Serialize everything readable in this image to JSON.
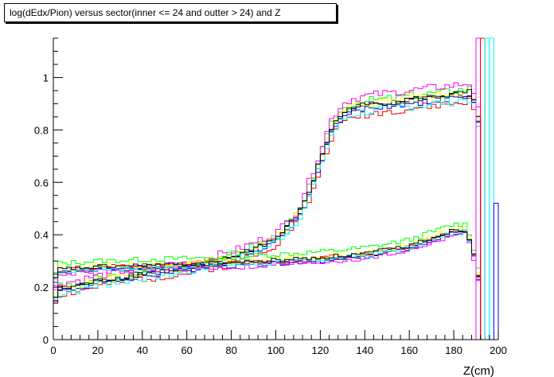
{
  "chart_data": {
    "type": "line",
    "title": "log(dEdx/Pion) versus sector(inner <= 24 and outter > 24)  and Z",
    "xlabel": "Z(cm)",
    "ylabel": "",
    "xlim": [
      0,
      200
    ],
    "ylim": [
      0,
      1.15
    ],
    "x_ticks": [
      0,
      20,
      40,
      60,
      80,
      100,
      120,
      140,
      160,
      180,
      200
    ],
    "y_ticks": [
      0,
      0.2,
      0.4,
      0.6,
      0.8,
      1
    ],
    "x_tick_labels": [
      "0",
      "20",
      "40",
      "60",
      "80",
      "100",
      "120",
      "140",
      "160",
      "180",
      "200"
    ],
    "y_tick_labels": [
      "0",
      "0.2",
      "0.4",
      "0.6",
      "0.8",
      "1"
    ],
    "grid": false,
    "legend": "none",
    "bin_width": 2,
    "band_templates": {
      "rising": {
        "x": [
          0,
          2,
          10,
          20,
          40,
          60,
          80,
          100,
          110,
          115,
          120,
          125,
          130,
          135,
          140,
          150,
          160,
          170,
          180,
          188,
          192
        ],
        "y": [
          0.13,
          0.19,
          0.2,
          0.22,
          0.25,
          0.27,
          0.31,
          0.38,
          0.47,
          0.56,
          0.68,
          0.8,
          0.86,
          0.88,
          0.89,
          0.9,
          0.91,
          0.92,
          0.93,
          0.94,
          0.8
        ]
      },
      "flat": {
        "x": [
          0,
          2,
          20,
          40,
          60,
          80,
          100,
          120,
          140,
          160,
          170,
          180,
          185,
          188,
          192
        ],
        "y": [
          0.19,
          0.26,
          0.27,
          0.275,
          0.28,
          0.285,
          0.295,
          0.305,
          0.32,
          0.35,
          0.38,
          0.41,
          0.41,
          0.36,
          0.2
        ]
      }
    },
    "series": [
      {
        "color": "#000000",
        "band": "rising",
        "shift": 0.0,
        "noise": 0.012,
        "seed": 1
      },
      {
        "color": "#ff0000",
        "band": "rising",
        "shift": -0.03,
        "noise": 0.015,
        "seed": 2
      },
      {
        "color": "#00ff00",
        "band": "rising",
        "shift": 0.02,
        "noise": 0.015,
        "seed": 3
      },
      {
        "color": "#0000ff",
        "band": "rising",
        "shift": -0.01,
        "noise": 0.012,
        "seed": 4
      },
      {
        "color": "#ffff00",
        "band": "rising",
        "shift": 0.01,
        "noise": 0.018,
        "seed": 5
      },
      {
        "color": "#ff00ff",
        "band": "rising",
        "shift": 0.04,
        "noise": 0.015,
        "seed": 6
      },
      {
        "color": "#00ffff",
        "band": "rising",
        "shift": -0.02,
        "noise": 0.018,
        "seed": 7
      },
      {
        "color": "#000000",
        "band": "rising",
        "shift": 0.005,
        "noise": 0.012,
        "seed": 8
      },
      {
        "color": "#000000",
        "band": "flat",
        "shift": 0.0,
        "noise": 0.008,
        "seed": 11
      },
      {
        "color": "#ff0000",
        "band": "flat",
        "shift": 0.005,
        "noise": 0.01,
        "seed": 12
      },
      {
        "color": "#00ff00",
        "band": "flat",
        "shift": 0.03,
        "noise": 0.01,
        "seed": 13
      },
      {
        "color": "#0000ff",
        "band": "flat",
        "shift": -0.005,
        "noise": 0.008,
        "seed": 14
      },
      {
        "color": "#ffff00",
        "band": "flat",
        "shift": 0.01,
        "noise": 0.01,
        "seed": 15
      },
      {
        "color": "#ff00ff",
        "band": "flat",
        "shift": -0.01,
        "noise": 0.01,
        "seed": 16
      },
      {
        "color": "#00ffff",
        "band": "flat",
        "shift": 0.0,
        "noise": 0.01,
        "seed": 17
      },
      {
        "color": "#000000",
        "band": "flat",
        "shift": 0.008,
        "noise": 0.008,
        "seed": 18
      }
    ],
    "edge_spikes": [
      {
        "x": 190,
        "y": 1.15,
        "color": "#ff00ff"
      },
      {
        "x": 192,
        "y": 1.15,
        "color": "#ff0000"
      },
      {
        "x": 194,
        "y": 1.15,
        "color": "#00ffff"
      },
      {
        "x": 196,
        "y": 1.15,
        "color": "#00ffff"
      },
      {
        "x": 198,
        "y": 0.52,
        "color": "#0000ff"
      }
    ]
  }
}
